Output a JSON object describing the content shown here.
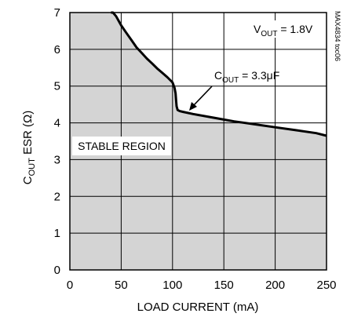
{
  "chart_data": {
    "type": "line",
    "title": "",
    "xlabel": "LOAD CURRENT (mA)",
    "ylabel": {
      "main": "C",
      "sub": "OUT",
      "rest": " ESR (Ω)"
    },
    "xlim": [
      0,
      250
    ],
    "ylim": [
      0,
      7
    ],
    "xticks": [
      "0",
      "50",
      "100",
      "150",
      "200",
      "250"
    ],
    "yticks": [
      "0",
      "1",
      "2",
      "3",
      "4",
      "5",
      "6",
      "7"
    ],
    "grid": true,
    "fill_below_curve": true,
    "series": [
      {
        "name": "",
        "x": [
          40,
          42,
          45,
          50,
          55,
          60,
          65,
          70,
          75,
          80,
          85,
          90,
          95,
          100,
          102,
          103,
          103.5,
          104,
          105,
          107,
          110,
          120,
          140,
          160,
          180,
          200,
          220,
          240,
          250
        ],
        "y": [
          7.05,
          7.0,
          6.9,
          6.65,
          6.45,
          6.25,
          6.05,
          5.9,
          5.75,
          5.62,
          5.48,
          5.36,
          5.24,
          5.1,
          4.95,
          4.8,
          4.6,
          4.45,
          4.35,
          4.32,
          4.3,
          4.24,
          4.14,
          4.04,
          3.96,
          3.88,
          3.8,
          3.72,
          3.65
        ]
      }
    ],
    "annotations": {
      "vout": {
        "main": "V",
        "sub": "OUT",
        "rest": " = 1.8V"
      },
      "cout": {
        "main": "C",
        "sub": "OUT",
        "rest": " = 3.3μF"
      },
      "region": "STABLE REGION",
      "figure_id": "MAX4834 toc06"
    }
  }
}
